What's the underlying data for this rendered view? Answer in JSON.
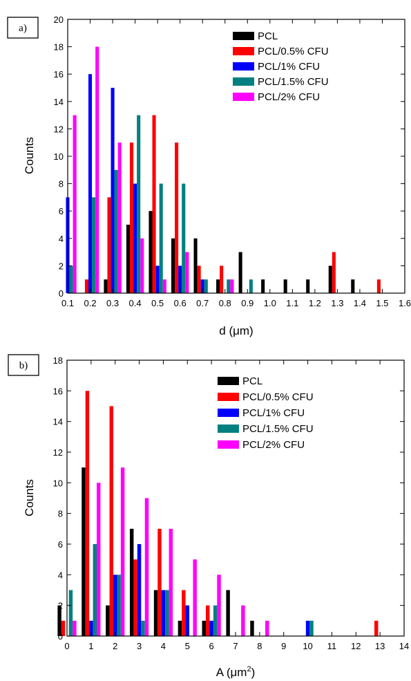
{
  "chart_data": [
    {
      "panel_label": "a)",
      "type": "bar",
      "xlabel": "d (μm)",
      "ylabel": "Counts",
      "xlim": [
        0.1,
        1.6
      ],
      "ylim": [
        0,
        20
      ],
      "x_ticks": [
        0.1,
        0.2,
        0.3,
        0.4,
        0.5,
        0.6,
        0.7,
        0.8,
        0.9,
        1.0,
        1.1,
        1.2,
        1.3,
        1.4,
        1.5,
        1.6
      ],
      "x_tick_labels": [
        "0.1",
        "0.2",
        "0.3",
        "0.4",
        "0.5",
        "0.6",
        "0.7",
        "0.8",
        "0.9",
        "1.0",
        "1.1",
        "1.2",
        "1.3",
        "1.4",
        "1.5",
        "1.6"
      ],
      "y_ticks": [
        0,
        2,
        4,
        6,
        8,
        10,
        12,
        14,
        16,
        18,
        20
      ],
      "y_tick_labels": [
        "0",
        "2",
        "4",
        "6",
        "8",
        "10",
        "12",
        "14",
        "16",
        "18",
        "20"
      ],
      "legend_position": "top-right",
      "grid": false,
      "series": [
        {
          "name": "PCL",
          "color": "#000000",
          "points": [
            [
              0.3,
              1
            ],
            [
              0.4,
              5
            ],
            [
              0.5,
              6
            ],
            [
              0.6,
              4
            ],
            [
              0.7,
              4
            ],
            [
              0.8,
              1
            ],
            [
              0.9,
              3
            ],
            [
              1.0,
              1
            ],
            [
              1.1,
              1
            ],
            [
              1.2,
              1
            ],
            [
              1.3,
              2
            ],
            [
              1.4,
              1
            ]
          ]
        },
        {
          "name": "PCL/0.5% CFU",
          "color": "#ff0000",
          "points": [
            [
              0.2,
              1
            ],
            [
              0.3,
              7
            ],
            [
              0.4,
              11
            ],
            [
              0.5,
              13
            ],
            [
              0.6,
              11
            ],
            [
              0.7,
              2
            ],
            [
              0.8,
              2
            ],
            [
              1.3,
              3
            ],
            [
              1.5,
              1
            ]
          ]
        },
        {
          "name": "PCL/1% CFU",
          "color": "#0000ff",
          "points": [
            [
              0.1,
              7
            ],
            [
              0.2,
              16
            ],
            [
              0.3,
              15
            ],
            [
              0.4,
              8
            ],
            [
              0.5,
              2
            ],
            [
              0.6,
              2
            ],
            [
              0.7,
              1
            ]
          ]
        },
        {
          "name": "PCL/1.5% CFU",
          "color": "#008080",
          "points": [
            [
              0.1,
              2
            ],
            [
              0.2,
              7
            ],
            [
              0.3,
              9
            ],
            [
              0.4,
              13
            ],
            [
              0.5,
              8
            ],
            [
              0.6,
              8
            ],
            [
              0.7,
              1
            ],
            [
              0.8,
              1
            ],
            [
              0.9,
              1
            ]
          ]
        },
        {
          "name": "PCL/2% CFU",
          "color": "#ff00ff",
          "points": [
            [
              0.1,
              13
            ],
            [
              0.2,
              18
            ],
            [
              0.3,
              11
            ],
            [
              0.4,
              4
            ],
            [
              0.5,
              1
            ],
            [
              0.6,
              3
            ],
            [
              0.8,
              1
            ]
          ]
        }
      ]
    },
    {
      "panel_label": "b)",
      "type": "bar",
      "xlabel": "A (μm",
      "xlabel_sup": "2",
      "xlabel_end": ")",
      "ylabel": "Counts",
      "xlim": [
        0,
        14
      ],
      "ylim": [
        0,
        18
      ],
      "x_ticks": [
        0,
        1,
        2,
        3,
        4,
        5,
        6,
        7,
        8,
        9,
        10,
        11,
        12,
        13,
        14
      ],
      "x_tick_labels": [
        "0",
        "1",
        "2",
        "3",
        "4",
        "5",
        "6",
        "7",
        "8",
        "9",
        "10",
        "11",
        "12",
        "13",
        "14"
      ],
      "y_ticks": [
        0,
        2,
        4,
        6,
        8,
        10,
        12,
        14,
        16,
        18
      ],
      "y_tick_labels": [
        "0",
        "2",
        "4",
        "6",
        "8",
        "10",
        "12",
        "14",
        "16",
        "18"
      ],
      "legend_position": "top-right",
      "grid": false,
      "series": [
        {
          "name": "PCL",
          "color": "#000000",
          "points": [
            [
              0,
              2
            ],
            [
              1,
              11
            ],
            [
              2,
              2
            ],
            [
              3,
              7
            ],
            [
              4,
              3
            ],
            [
              5,
              1
            ],
            [
              6,
              1
            ],
            [
              7,
              3
            ],
            [
              8,
              1
            ]
          ]
        },
        {
          "name": "PCL/0.5% CFU",
          "color": "#ff0000",
          "points": [
            [
              0,
              1
            ],
            [
              1,
              16
            ],
            [
              2,
              15
            ],
            [
              3,
              5
            ],
            [
              4,
              7
            ],
            [
              5,
              3
            ],
            [
              6,
              2
            ],
            [
              13,
              1
            ]
          ]
        },
        {
          "name": "PCL/1% CFU",
          "color": "#0000ff",
          "points": [
            [
              1,
              1
            ],
            [
              2,
              4
            ],
            [
              3,
              6
            ],
            [
              4,
              3
            ],
            [
              5,
              2
            ],
            [
              6,
              1
            ],
            [
              10,
              1
            ]
          ]
        },
        {
          "name": "PCL/1.5% CFU",
          "color": "#008080",
          "points": [
            [
              0,
              3
            ],
            [
              1,
              6
            ],
            [
              2,
              4
            ],
            [
              3,
              1
            ],
            [
              4,
              3
            ],
            [
              6,
              2
            ],
            [
              10,
              1
            ]
          ]
        },
        {
          "name": "PCL/2% CFU",
          "color": "#ff00ff",
          "points": [
            [
              0,
              1
            ],
            [
              1,
              10
            ],
            [
              2,
              11
            ],
            [
              3,
              9
            ],
            [
              4,
              7
            ],
            [
              5,
              5
            ],
            [
              6,
              4
            ],
            [
              7,
              2
            ],
            [
              8,
              1
            ]
          ]
        }
      ]
    }
  ]
}
